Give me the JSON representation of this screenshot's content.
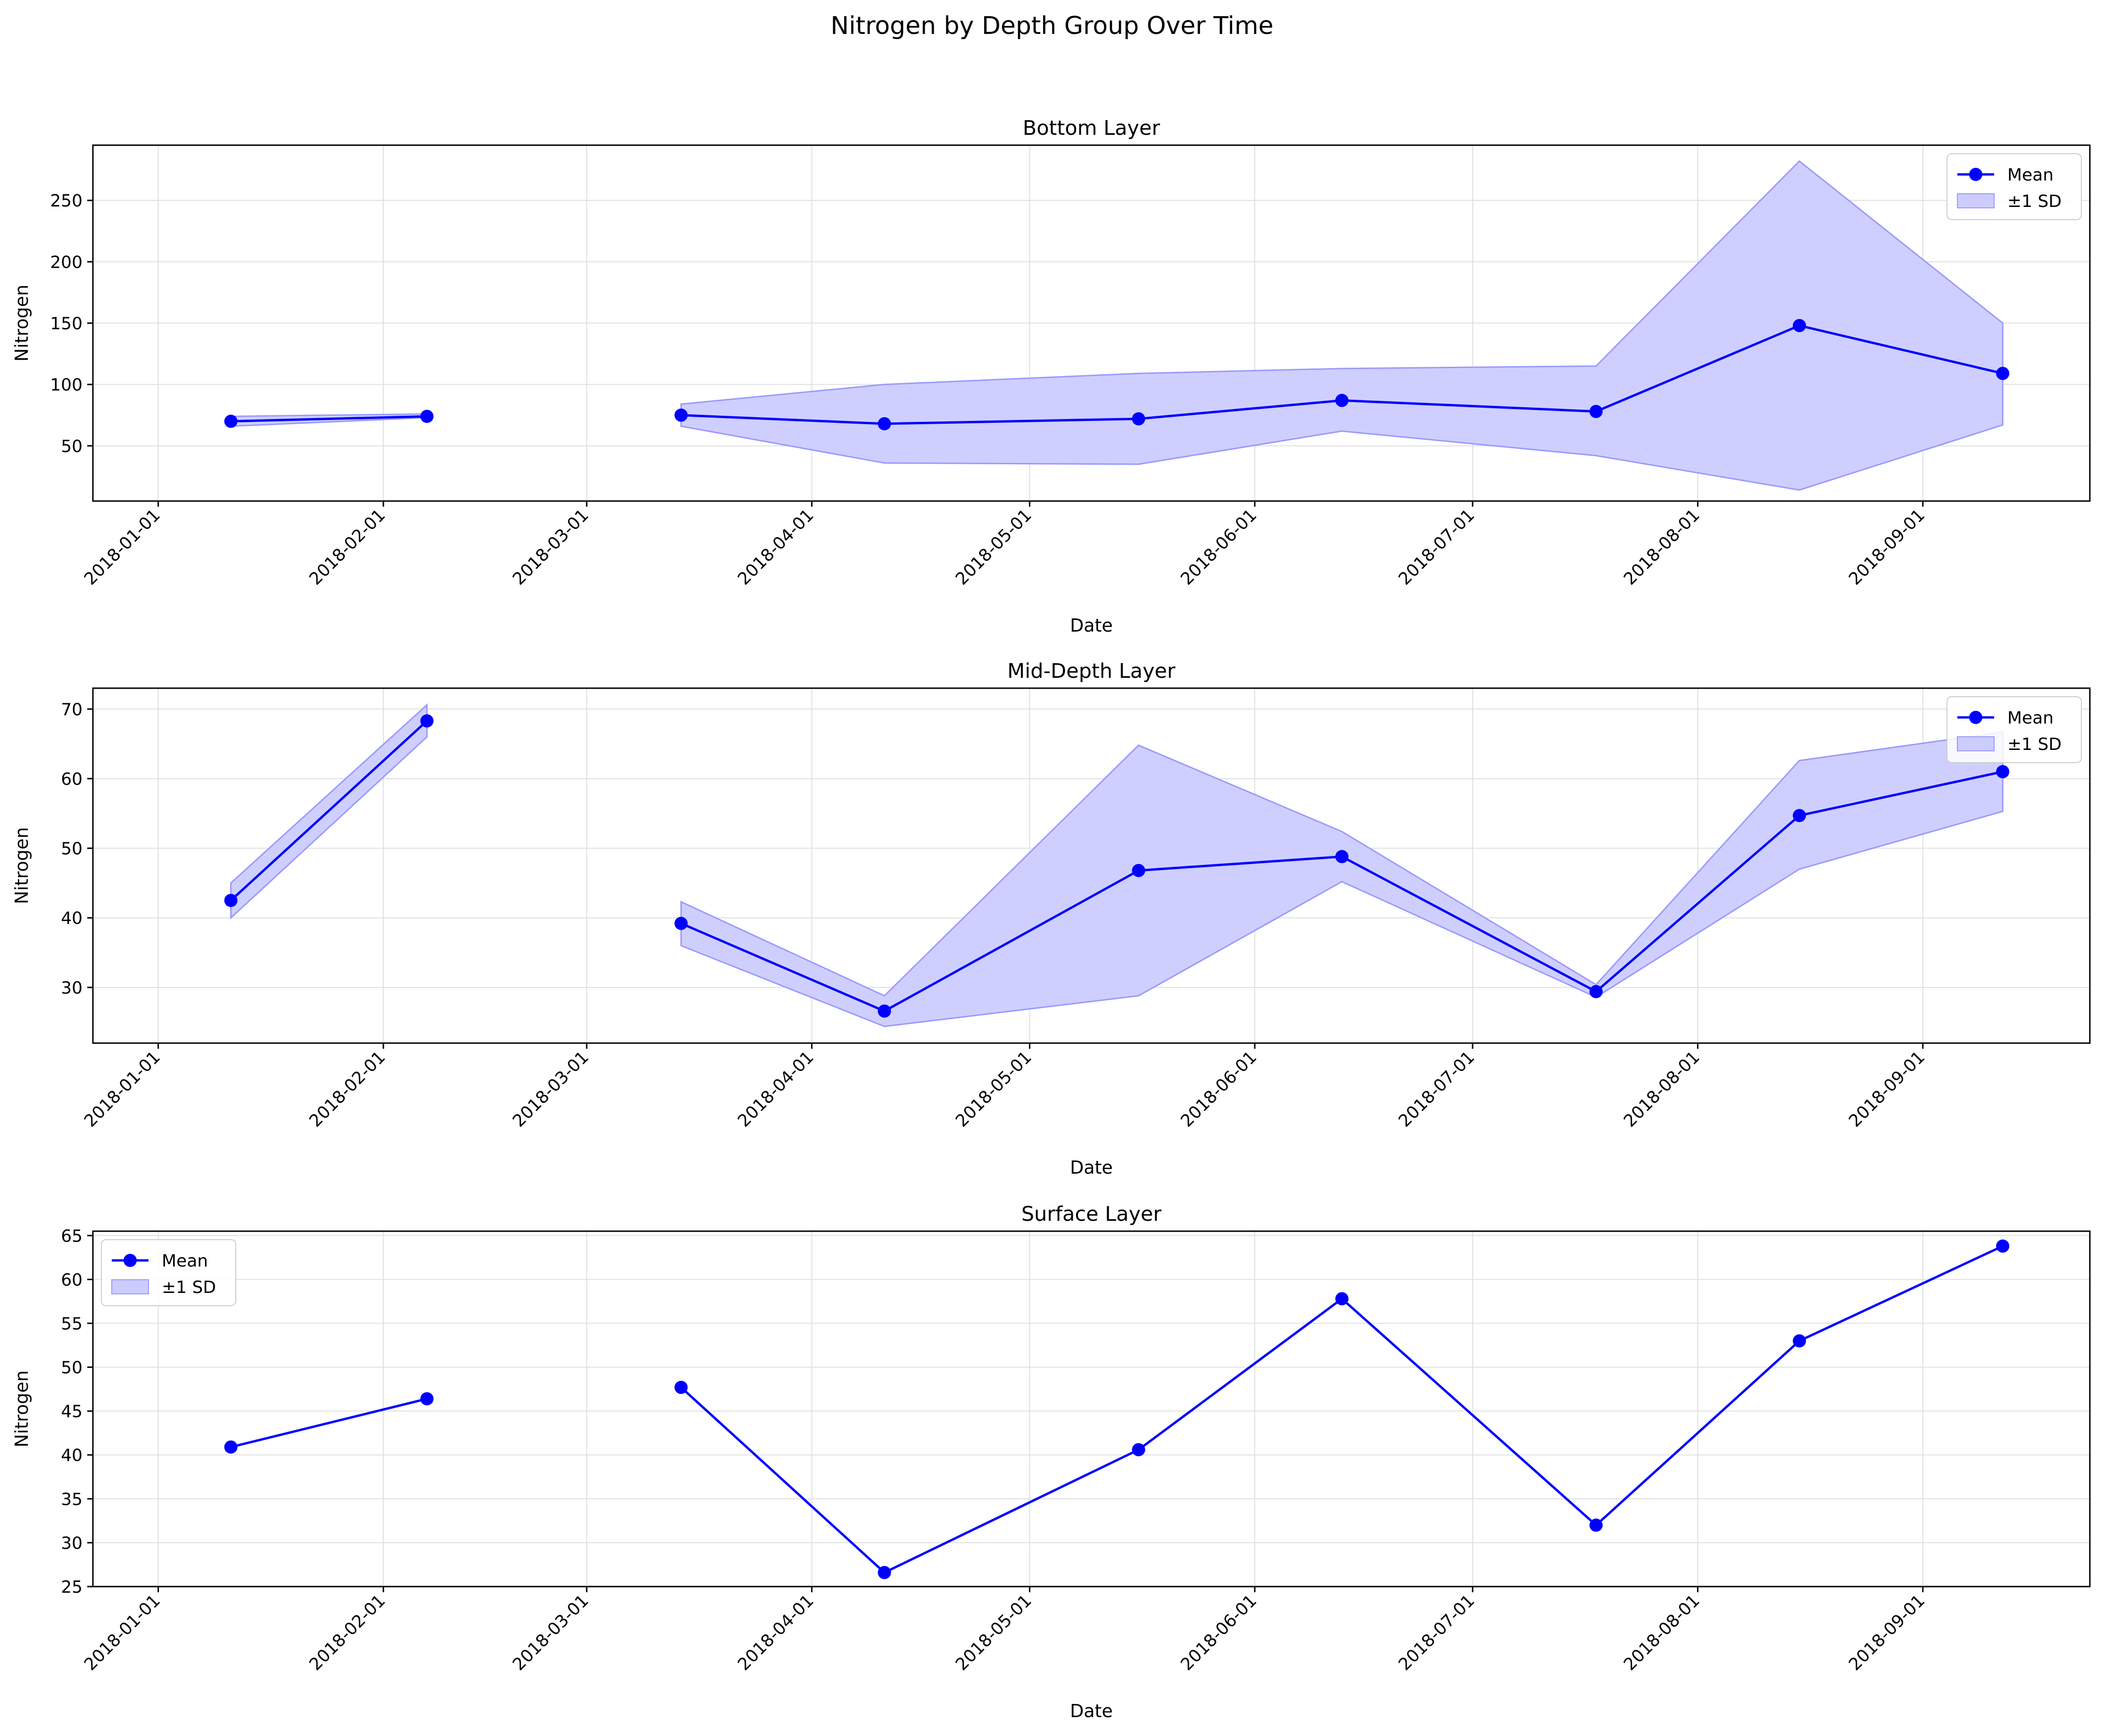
{
  "colors": {
    "line": "#0000ff",
    "band_fill": "#ccccff",
    "band_edge": "#9999ff",
    "grid": "#e0e0e0",
    "axis": "#000000"
  },
  "chart_data": {
    "title": "Nitrogen by Depth Group Over Time",
    "panels": [
      {
        "type": "line",
        "title": "Bottom Layer",
        "xlabel": "Date",
        "ylabel": "Nitrogen",
        "xlim": [
          "2017-12-23",
          "2018-09-24"
        ],
        "ylim": [
          5,
          295
        ],
        "yticks": [
          50,
          100,
          150,
          200,
          250
        ],
        "xticks": [
          "2018-01-01",
          "2018-02-01",
          "2018-03-01",
          "2018-04-01",
          "2018-05-01",
          "2018-06-01",
          "2018-07-01",
          "2018-08-01",
          "2018-09-01"
        ],
        "grid": true,
        "legend": "top-right",
        "legend_entries": [
          "Mean",
          "±1 SD"
        ],
        "x": [
          "2018-01-11",
          "2018-02-07",
          "2018-03-14",
          "2018-04-11",
          "2018-05-16",
          "2018-06-13",
          "2018-07-18",
          "2018-08-15",
          "2018-09-12"
        ],
        "segments": [
          [
            0,
            1
          ],
          [
            2,
            8
          ]
        ],
        "series": [
          {
            "name": "Mean",
            "values": [
              70,
              74,
              75,
              68,
              72,
              87,
              78,
              148,
              109
            ]
          },
          {
            "name": "±1 SD",
            "lower": [
              66,
              73,
              66,
              36,
              35,
              62,
              42,
              14,
              67
            ],
            "upper": [
              74,
              76,
              84,
              100,
              109,
              113,
              115,
              282,
              150
            ]
          }
        ]
      },
      {
        "type": "line",
        "title": "Mid-Depth Layer",
        "xlabel": "Date",
        "ylabel": "Nitrogen",
        "xlim": [
          "2017-12-23",
          "2018-09-24"
        ],
        "ylim": [
          22,
          73
        ],
        "yticks": [
          30,
          40,
          50,
          60,
          70
        ],
        "xticks": [
          "2018-01-01",
          "2018-02-01",
          "2018-03-01",
          "2018-04-01",
          "2018-05-01",
          "2018-06-01",
          "2018-07-01",
          "2018-08-01",
          "2018-09-01"
        ],
        "grid": true,
        "legend": "top-right",
        "legend_entries": [
          "Mean",
          "±1 SD"
        ],
        "x": [
          "2018-01-11",
          "2018-02-07",
          "2018-03-14",
          "2018-04-11",
          "2018-05-16",
          "2018-06-13",
          "2018-07-18",
          "2018-08-15",
          "2018-09-12"
        ],
        "segments": [
          [
            0,
            1
          ],
          [
            2,
            8
          ]
        ],
        "series": [
          {
            "name": "Mean",
            "values": [
              42.5,
              68.3,
              39.2,
              26.6,
              46.8,
              48.8,
              29.4,
              54.7,
              61.0
            ]
          },
          {
            "name": "±1 SD",
            "lower": [
              40.0,
              66.0,
              36.0,
              24.4,
              28.8,
              45.2,
              28.6,
              47.0,
              55.3
            ],
            "upper": [
              45.0,
              70.6,
              42.3,
              28.8,
              64.8,
              52.4,
              30.4,
              62.6,
              66.7
            ]
          }
        ]
      },
      {
        "type": "line",
        "title": "Surface Layer",
        "xlabel": "Date",
        "ylabel": "Nitrogen",
        "xlim": [
          "2017-12-23",
          "2018-09-24"
        ],
        "ylim": [
          25,
          65.5
        ],
        "yticks": [
          25,
          30,
          35,
          40,
          45,
          50,
          55,
          60,
          65
        ],
        "xticks": [
          "2018-01-01",
          "2018-02-01",
          "2018-03-01",
          "2018-04-01",
          "2018-05-01",
          "2018-06-01",
          "2018-07-01",
          "2018-08-01",
          "2018-09-01"
        ],
        "grid": true,
        "legend": "top-left",
        "legend_entries": [
          "Mean",
          "±1 SD"
        ],
        "x": [
          "2018-01-11",
          "2018-02-07",
          "2018-03-14",
          "2018-04-11",
          "2018-05-16",
          "2018-06-13",
          "2018-07-18",
          "2018-08-15",
          "2018-09-12"
        ],
        "segments": [
          [
            0,
            1
          ],
          [
            2,
            8
          ]
        ],
        "series": [
          {
            "name": "Mean",
            "values": [
              40.9,
              46.4,
              47.7,
              26.6,
              40.6,
              57.8,
              32.0,
              53.0,
              63.8
            ]
          },
          {
            "name": "±1 SD",
            "lower": [],
            "upper": []
          }
        ]
      }
    ]
  }
}
